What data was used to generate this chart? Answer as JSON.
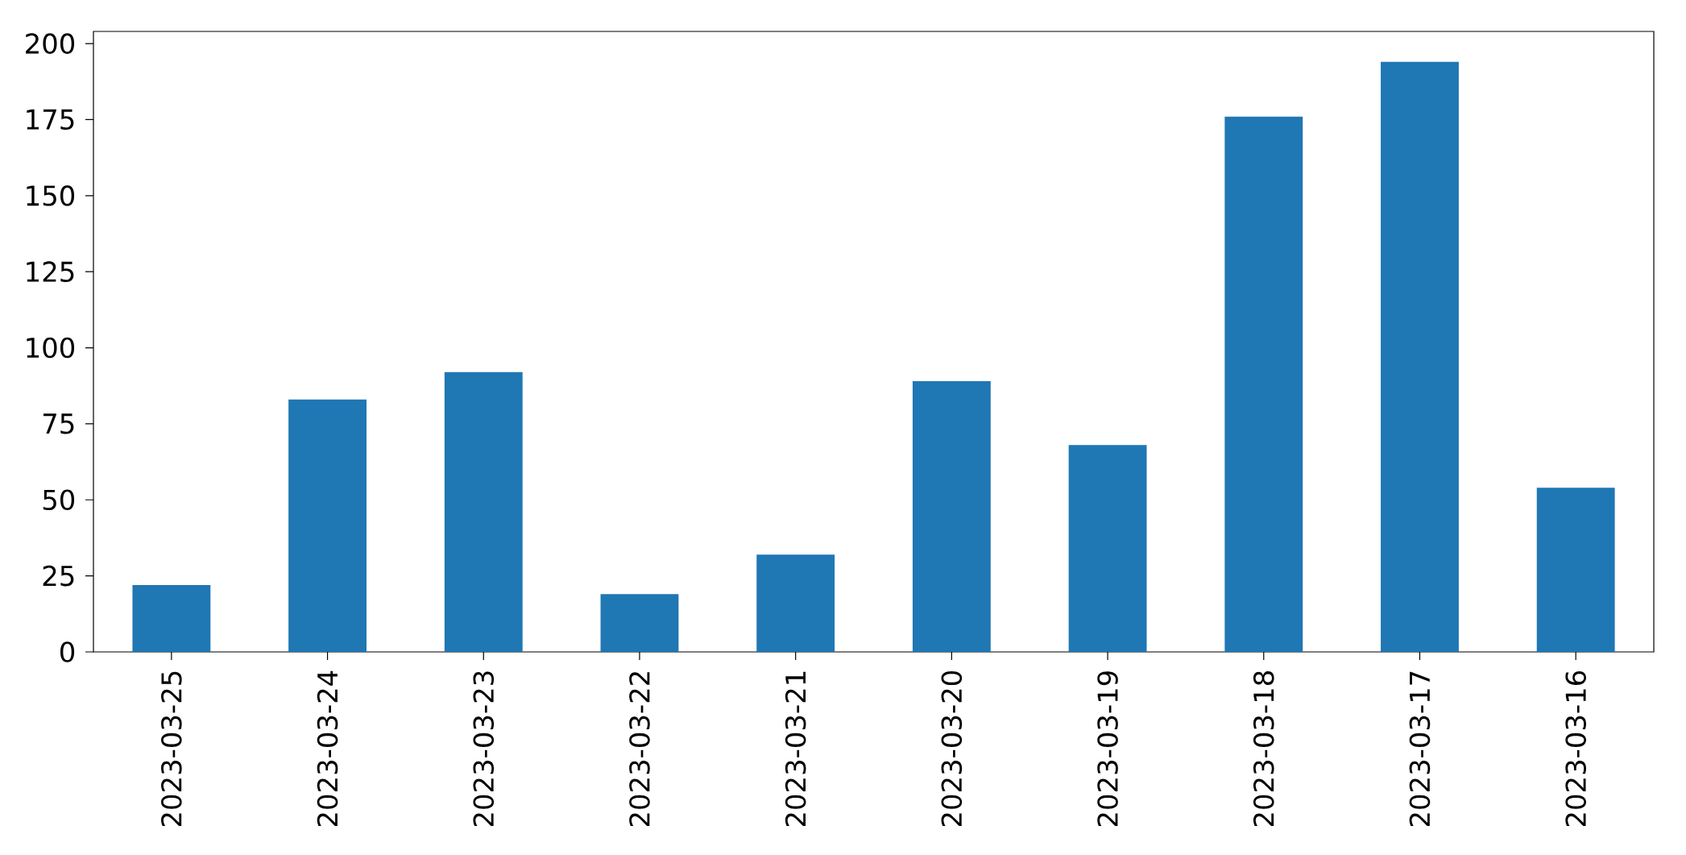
{
  "chart_data": {
    "type": "bar",
    "categories": [
      "2023-03-25",
      "2023-03-24",
      "2023-03-23",
      "2023-03-22",
      "2023-03-21",
      "2023-03-20",
      "2023-03-19",
      "2023-03-18",
      "2023-03-17",
      "2023-03-16"
    ],
    "values": [
      22,
      83,
      92,
      19,
      32,
      89,
      68,
      176,
      194,
      54
    ],
    "color": "#1f77b4",
    "ylim": [
      0,
      204
    ],
    "yticks": [
      0,
      25,
      50,
      75,
      100,
      125,
      150,
      175,
      200
    ]
  }
}
